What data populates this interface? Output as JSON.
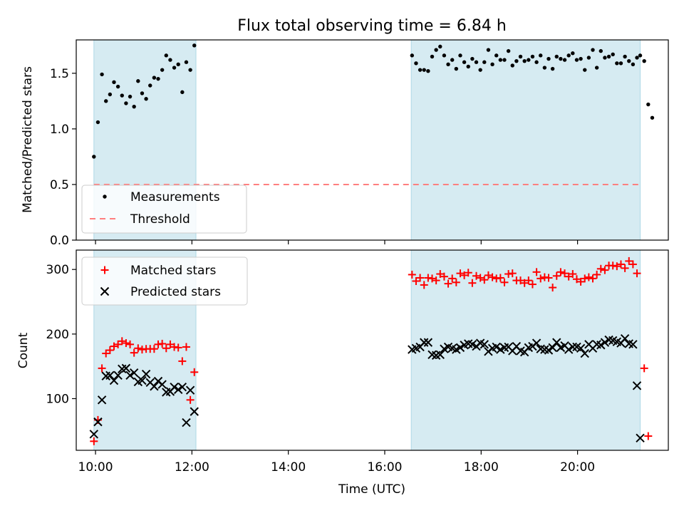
{
  "title": "Flux total observing time = 6.84 h",
  "colors": {
    "measurements": "#000000",
    "threshold": "#ff7f7f",
    "matched": "#ff0000",
    "predicted": "#000000",
    "observing_span": "#add8e6"
  },
  "chart_data": [
    {
      "type": "scatter",
      "ylabel": "Matched/Predicted stars",
      "xlabel": "",
      "xlim": [
        "09:36",
        "21:53"
      ],
      "ylim": [
        0,
        1.8
      ],
      "y_ticks": [
        "0.0",
        "0.5",
        "1.0",
        "1.5"
      ],
      "legend_position": "lower-left",
      "legend": [
        "Measurements",
        "Threshold"
      ],
      "threshold": {
        "name": "Threshold",
        "value": 0.5,
        "x_start": "09:58",
        "x_end": "21:18"
      },
      "shaded_spans": [
        [
          "09:58",
          "12:05"
        ],
        [
          "16:33",
          "21:18"
        ]
      ],
      "series": [
        {
          "name": "Measurements",
          "marker": "dot",
          "points": [
            [
              "09:58",
              0.75
            ],
            [
              "10:03",
              1.06
            ],
            [
              "10:08",
              1.49
            ],
            [
              "10:13",
              1.25
            ],
            [
              "10:18",
              1.31
            ],
            [
              "10:23",
              1.42
            ],
            [
              "10:28",
              1.38
            ],
            [
              "10:33",
              1.3
            ],
            [
              "10:38",
              1.23
            ],
            [
              "10:43",
              1.29
            ],
            [
              "10:48",
              1.2
            ],
            [
              "10:53",
              1.43
            ],
            [
              "10:58",
              1.32
            ],
            [
              "11:03",
              1.27
            ],
            [
              "11:08",
              1.39
            ],
            [
              "11:13",
              1.46
            ],
            [
              "11:18",
              1.45
            ],
            [
              "11:23",
              1.53
            ],
            [
              "11:28",
              1.66
            ],
            [
              "11:33",
              1.62
            ],
            [
              "11:38",
              1.55
            ],
            [
              "11:43",
              1.58
            ],
            [
              "11:48",
              1.33
            ],
            [
              "11:53",
              1.6
            ],
            [
              "11:58",
              1.53
            ],
            [
              "12:03",
              1.75
            ],
            [
              "16:34",
              1.66
            ],
            [
              "16:39",
              1.59
            ],
            [
              "16:44",
              1.53
            ],
            [
              "16:49",
              1.53
            ],
            [
              "16:54",
              1.52
            ],
            [
              "16:59",
              1.65
            ],
            [
              "17:04",
              1.71
            ],
            [
              "17:09",
              1.74
            ],
            [
              "17:14",
              1.66
            ],
            [
              "17:19",
              1.58
            ],
            [
              "17:24",
              1.62
            ],
            [
              "17:29",
              1.54
            ],
            [
              "17:34",
              1.66
            ],
            [
              "17:39",
              1.6
            ],
            [
              "17:44",
              1.56
            ],
            [
              "17:49",
              1.63
            ],
            [
              "17:54",
              1.6
            ],
            [
              "17:59",
              1.53
            ],
            [
              "18:04",
              1.6
            ],
            [
              "18:09",
              1.71
            ],
            [
              "18:14",
              1.58
            ],
            [
              "18:19",
              1.66
            ],
            [
              "18:24",
              1.62
            ],
            [
              "18:29",
              1.62
            ],
            [
              "18:34",
              1.7
            ],
            [
              "18:39",
              1.57
            ],
            [
              "18:44",
              1.61
            ],
            [
              "18:49",
              1.65
            ],
            [
              "18:54",
              1.61
            ],
            [
              "18:59",
              1.62
            ],
            [
              "19:04",
              1.65
            ],
            [
              "19:09",
              1.6
            ],
            [
              "19:14",
              1.66
            ],
            [
              "19:19",
              1.55
            ],
            [
              "19:24",
              1.63
            ],
            [
              "19:29",
              1.54
            ],
            [
              "19:34",
              1.65
            ],
            [
              "19:39",
              1.63
            ],
            [
              "19:44",
              1.62
            ],
            [
              "19:49",
              1.66
            ],
            [
              "19:54",
              1.68
            ],
            [
              "19:59",
              1.62
            ],
            [
              "20:04",
              1.63
            ],
            [
              "20:09",
              1.53
            ],
            [
              "20:14",
              1.64
            ],
            [
              "20:19",
              1.71
            ],
            [
              "20:24",
              1.55
            ],
            [
              "20:29",
              1.7
            ],
            [
              "20:34",
              1.64
            ],
            [
              "20:39",
              1.65
            ],
            [
              "20:44",
              1.67
            ],
            [
              "20:49",
              1.59
            ],
            [
              "20:54",
              1.59
            ],
            [
              "20:59",
              1.65
            ],
            [
              "21:04",
              1.61
            ],
            [
              "21:09",
              1.58
            ],
            [
              "21:14",
              1.64
            ],
            [
              "21:18",
              1.66
            ],
            [
              "21:23",
              1.61
            ],
            [
              "21:28",
              1.22
            ],
            [
              "21:33",
              1.1
            ]
          ]
        }
      ]
    },
    {
      "type": "scatter",
      "ylabel": "Count",
      "xlabel": "Time (UTC)",
      "xlim": [
        "09:36",
        "21:53"
      ],
      "ylim": [
        20,
        330
      ],
      "y_ticks": [
        "100",
        "200",
        "300"
      ],
      "x_ticks": [
        "10:00",
        "12:00",
        "14:00",
        "16:00",
        "18:00",
        "20:00"
      ],
      "legend_position": "upper-left",
      "legend": [
        "Matched stars",
        "Predicted stars"
      ],
      "shaded_spans": [
        [
          "09:58",
          "12:05"
        ],
        [
          "16:33",
          "21:18"
        ]
      ],
      "series": [
        {
          "name": "Matched stars",
          "marker": "plus",
          "points": [
            [
              "09:58",
              34
            ],
            [
              "10:03",
              67
            ],
            [
              "10:08",
              147
            ],
            [
              "10:13",
              170
            ],
            [
              "10:18",
              175
            ],
            [
              "10:23",
              181
            ],
            [
              "10:28",
              184
            ],
            [
              "10:33",
              189
            ],
            [
              "10:38",
              186
            ],
            [
              "10:43",
              184
            ],
            [
              "10:48",
              171
            ],
            [
              "10:53",
              178
            ],
            [
              "10:58",
              176
            ],
            [
              "11:03",
              177
            ],
            [
              "11:08",
              177
            ],
            [
              "11:13",
              177
            ],
            [
              "11:18",
              184
            ],
            [
              "11:23",
              185
            ],
            [
              "11:28",
              178
            ],
            [
              "11:33",
              184
            ],
            [
              "11:38",
              180
            ],
            [
              "11:43",
              179
            ],
            [
              "11:48",
              158
            ],
            [
              "11:53",
              180
            ],
            [
              "11:58",
              98
            ],
            [
              "12:03",
              141
            ],
            [
              "16:34",
              292
            ],
            [
              "16:39",
              282
            ],
            [
              "16:44",
              287
            ],
            [
              "16:49",
              276
            ],
            [
              "16:54",
              287
            ],
            [
              "16:59",
              286
            ],
            [
              "17:04",
              283
            ],
            [
              "17:09",
              293
            ],
            [
              "17:14",
              289
            ],
            [
              "17:19",
              278
            ],
            [
              "17:24",
              286
            ],
            [
              "17:29",
              280
            ],
            [
              "17:34",
              294
            ],
            [
              "17:39",
              291
            ],
            [
              "17:44",
              295
            ],
            [
              "17:49",
              279
            ],
            [
              "17:54",
              290
            ],
            [
              "17:59",
              287
            ],
            [
              "18:04",
              284
            ],
            [
              "18:09",
              291
            ],
            [
              "18:14",
              288
            ],
            [
              "18:19",
              286
            ],
            [
              "18:24",
              287
            ],
            [
              "18:29",
              280
            ],
            [
              "18:34",
              293
            ],
            [
              "18:39",
              294
            ],
            [
              "18:44",
              283
            ],
            [
              "18:49",
              283
            ],
            [
              "18:54",
              279
            ],
            [
              "18:59",
              283
            ],
            [
              "19:04",
              277
            ],
            [
              "19:09",
              296
            ],
            [
              "19:14",
              286
            ],
            [
              "19:19",
              288
            ],
            [
              "19:24",
              287
            ],
            [
              "19:29",
              272
            ],
            [
              "19:34",
              290
            ],
            [
              "19:39",
              296
            ],
            [
              "19:44",
              294
            ],
            [
              "19:49",
              289
            ],
            [
              "19:54",
              293
            ],
            [
              "19:59",
              285
            ],
            [
              "20:04",
              281
            ],
            [
              "20:09",
              286
            ],
            [
              "20:14",
              288
            ],
            [
              "20:19",
              286
            ],
            [
              "20:24",
              292
            ],
            [
              "20:29",
              301
            ],
            [
              "20:34",
              299
            ],
            [
              "20:39",
              306
            ],
            [
              "20:44",
              306
            ],
            [
              "20:49",
              305
            ],
            [
              "20:54",
              308
            ],
            [
              "20:59",
              302
            ],
            [
              "21:04",
              313
            ],
            [
              "21:09",
              308
            ],
            [
              "21:14",
              294
            ],
            [
              "21:23",
              147
            ],
            [
              "21:28",
              42
            ]
          ]
        },
        {
          "name": "Predicted stars",
          "marker": "x",
          "points": [
            [
              "09:58",
              45
            ],
            [
              "10:03",
              64
            ],
            [
              "10:08",
              98
            ],
            [
              "10:13",
              135
            ],
            [
              "10:18",
              136
            ],
            [
              "10:23",
              128
            ],
            [
              "10:28",
              136
            ],
            [
              "10:33",
              146
            ],
            [
              "10:38",
              147
            ],
            [
              "10:43",
              136
            ],
            [
              "10:48",
              140
            ],
            [
              "10:53",
              126
            ],
            [
              "10:58",
              128
            ],
            [
              "11:03",
              138
            ],
            [
              "11:08",
              125
            ],
            [
              "11:13",
              119
            ],
            [
              "11:18",
              127
            ],
            [
              "11:23",
              122
            ],
            [
              "11:28",
              110
            ],
            [
              "11:33",
              111
            ],
            [
              "11:38",
              118
            ],
            [
              "11:43",
              114
            ],
            [
              "11:48",
              118
            ],
            [
              "11:53",
              63
            ],
            [
              "11:58",
              113
            ],
            [
              "12:03",
              80
            ],
            [
              "16:34",
              176
            ],
            [
              "16:39",
              178
            ],
            [
              "16:44",
              180
            ],
            [
              "16:49",
              187
            ],
            [
              "16:54",
              187
            ],
            [
              "16:59",
              168
            ],
            [
              "17:04",
              167
            ],
            [
              "17:09",
              168
            ],
            [
              "17:14",
              177
            ],
            [
              "17:19",
              180
            ],
            [
              "17:24",
              178
            ],
            [
              "17:29",
              176
            ],
            [
              "17:34",
              179
            ],
            [
              "17:39",
              183
            ],
            [
              "17:44",
              185
            ],
            [
              "17:49",
              184
            ],
            [
              "17:54",
              181
            ],
            [
              "17:59",
              186
            ],
            [
              "18:04",
              184
            ],
            [
              "18:09",
              173
            ],
            [
              "18:14",
              178
            ],
            [
              "18:19",
              180
            ],
            [
              "18:24",
              176
            ],
            [
              "18:29",
              179
            ],
            [
              "18:34",
              180
            ],
            [
              "18:39",
              174
            ],
            [
              "18:44",
              181
            ],
            [
              "18:49",
              174
            ],
            [
              "18:54",
              172
            ],
            [
              "18:59",
              179
            ],
            [
              "19:04",
              181
            ],
            [
              "19:09",
              186
            ],
            [
              "19:14",
              177
            ],
            [
              "19:19",
              176
            ],
            [
              "19:24",
              175
            ],
            [
              "19:29",
              179
            ],
            [
              "19:34",
              187
            ],
            [
              "19:39",
              179
            ],
            [
              "19:44",
              182
            ],
            [
              "19:49",
              176
            ],
            [
              "19:54",
              180
            ],
            [
              "19:59",
              180
            ],
            [
              "20:04",
              178
            ],
            [
              "20:09",
              170
            ],
            [
              "20:14",
              184
            ],
            [
              "20:19",
              178
            ],
            [
              "20:24",
              184
            ],
            [
              "20:29",
              183
            ],
            [
              "20:34",
              187
            ],
            [
              "20:39",
              191
            ],
            [
              "20:44",
              190
            ],
            [
              "20:49",
              188
            ],
            [
              "20:54",
              186
            ],
            [
              "20:59",
              193
            ],
            [
              "21:04",
              185
            ],
            [
              "21:09",
              184
            ],
            [
              "21:14",
              120
            ],
            [
              "21:18",
              39
            ]
          ]
        }
      ]
    }
  ]
}
